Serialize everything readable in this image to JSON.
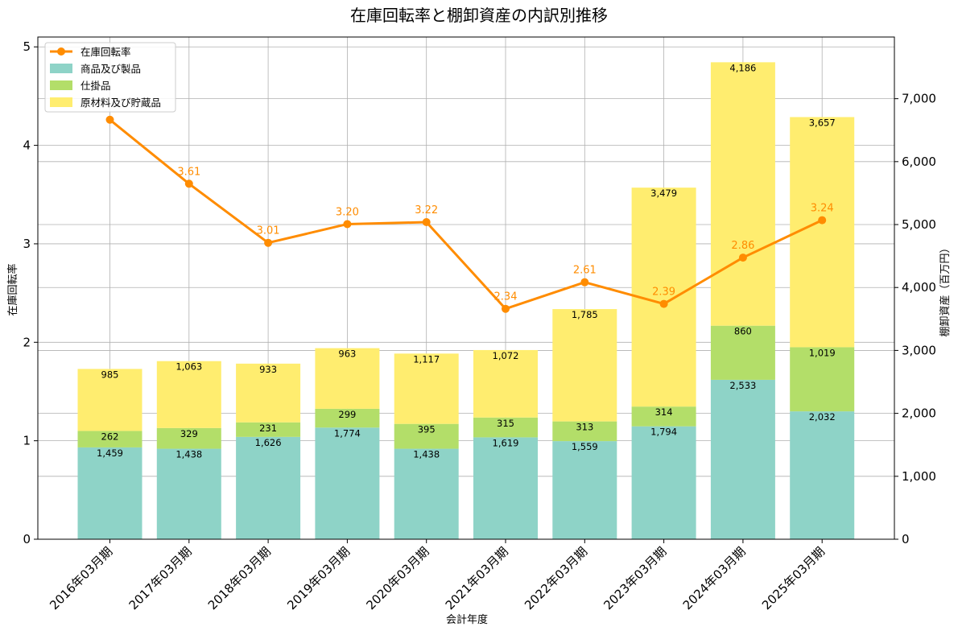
{
  "chart_data": {
    "type": "bar",
    "title": "在庫回転率と棚卸資産の内訳別推移",
    "xlabel": "会計年度",
    "ylabel_left": "在庫回転率",
    "ylabel_right": "棚卸資産（百万円）",
    "grid": true,
    "legend_position": "top-left",
    "categories": [
      "2016年03月期",
      "2017年03月期",
      "2018年03月期",
      "2019年03月期",
      "2020年03月期",
      "2021年03月期",
      "2022年03月期",
      "2023年03月期",
      "2024年03月期",
      "2025年03月期"
    ],
    "left_axis": {
      "ylim": [
        0,
        5.1
      ],
      "ticks": [
        0,
        1,
        2,
        3,
        4,
        5
      ],
      "tick_labels": [
        "0",
        "1",
        "2",
        "3",
        "4",
        "5"
      ]
    },
    "right_axis": {
      "ylim": [
        0,
        7980
      ],
      "ticks": [
        0,
        1000,
        2000,
        3000,
        4000,
        5000,
        6000,
        7000
      ],
      "tick_labels": [
        "0",
        "1,000",
        "2,000",
        "3,000",
        "4,000",
        "5,000",
        "6,000",
        "7,000"
      ]
    },
    "series": [
      {
        "name": "商品及び製品",
        "kind": "bar",
        "axis": "right",
        "color": "#8ed3c7",
        "values": [
          1459,
          1438,
          1626,
          1774,
          1438,
          1619,
          1559,
          1794,
          2533,
          2032
        ],
        "labels": [
          "1,459",
          "1,438",
          "1,626",
          "1,774",
          "1,438",
          "1,619",
          "1,559",
          "1,794",
          "2,533",
          "2,032"
        ]
      },
      {
        "name": "仕掛品",
        "kind": "bar",
        "axis": "right",
        "color": "#b3de69",
        "values": [
          262,
          329,
          231,
          299,
          395,
          315,
          313,
          314,
          860,
          1019
        ],
        "labels": [
          "262",
          "329",
          "231",
          "299",
          "395",
          "315",
          "313",
          "314",
          "860",
          "1,019"
        ]
      },
      {
        "name": "原材料及び貯蔵品",
        "kind": "bar",
        "axis": "right",
        "color": "#ffed6f",
        "values": [
          985,
          1063,
          933,
          963,
          1117,
          1072,
          1785,
          3479,
          4186,
          3657
        ],
        "labels": [
          "985",
          "1,063",
          "933",
          "963",
          "1,117",
          "1,072",
          "1,785",
          "3,479",
          "4,186",
          "3,657"
        ]
      },
      {
        "name": "在庫回転率",
        "kind": "line",
        "axis": "left",
        "color": "#ff8c00",
        "values": [
          4.26,
          3.61,
          3.01,
          3.2,
          3.22,
          2.34,
          2.61,
          2.39,
          2.86,
          3.24
        ],
        "labels": [
          "",
          "3.61",
          "3.01",
          "3.20",
          "3.22",
          "2.34",
          "2.61",
          "2.39",
          "2.86",
          "3.24"
        ]
      }
    ],
    "legend_order": [
      "在庫回転率",
      "商品及び製品",
      "仕掛品",
      "原材料及び貯蔵品"
    ]
  }
}
